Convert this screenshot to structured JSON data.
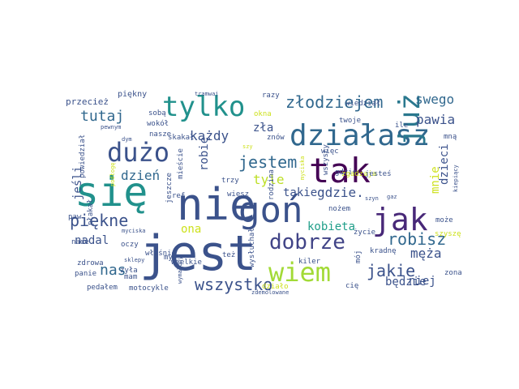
{
  "words": [
    {
      "text": "jest",
      "color": "#3b528b"
    },
    {
      "text": "nie",
      "color": "#3b528b"
    },
    {
      "text": "się",
      "color": "#21918c"
    },
    {
      "text": "goń",
      "color": "#3b528b"
    },
    {
      "text": "tak",
      "color": "#440154"
    },
    {
      "text": "działasz",
      "color": "#31688e"
    },
    {
      "text": "tylko",
      "color": "#21918c"
    },
    {
      "text": "dużo",
      "color": "#3b528b"
    },
    {
      "text": "jak",
      "color": "#482878"
    },
    {
      "text": "już",
      "color": "#2a788e"
    },
    {
      "text": "wiem",
      "color": "#a2da37"
    },
    {
      "text": "dobrze",
      "color": "#414487"
    },
    {
      "text": "złodziejem",
      "color": "#31688e"
    },
    {
      "text": "jestem",
      "color": "#31688e"
    },
    {
      "text": "piękne",
      "color": "#3b528b"
    },
    {
      "text": "robisz",
      "color": "#31688e"
    },
    {
      "text": "wszystko",
      "color": "#3b528b"
    },
    {
      "text": "tutaj",
      "color": "#31688e"
    },
    {
      "text": "jakie",
      "color": "#3b528b"
    },
    {
      "text": "nas",
      "color": "#31688e"
    },
    {
      "text": "każdy",
      "color": "#3b528b"
    },
    {
      "text": "dzień",
      "color": "#31688e"
    },
    {
      "text": "tyle",
      "color": "#bddf26"
    },
    {
      "text": "gdzie.",
      "color": "#3b528b"
    },
    {
      "text": "swego",
      "color": "#31688e"
    },
    {
      "text": "pawia",
      "color": "#3b528b"
    },
    {
      "text": "kobieta",
      "color": "#1f9e89"
    },
    {
      "text": "męża",
      "color": "#3b528b"
    },
    {
      "text": "niej",
      "color": "#3b528b"
    },
    {
      "text": "dzieci",
      "color": "#3b528b"
    },
    {
      "text": "mnie",
      "color": "#cde11d"
    },
    {
      "text": "jeśli",
      "color": "#3b528b"
    },
    {
      "text": "zła",
      "color": "#3b528b"
    },
    {
      "text": "nadal",
      "color": "#3b528b"
    },
    {
      "text": "ona",
      "color": "#cde11d"
    },
    {
      "text": "takie",
      "color": "#3b528b"
    },
    {
      "text": "robię",
      "color": "#3b528b"
    },
    {
      "text": "będzie",
      "color": "#3b528b"
    },
    {
      "text": "przecież",
      "color": "#3b528b"
    },
    {
      "text": "piękny",
      "color": "#3b528b"
    },
    {
      "text": "razy",
      "color": "#3b528b"
    },
    {
      "text": "okna",
      "color": "#cde11d"
    },
    {
      "text": "wiedział",
      "color": "#3b528b"
    },
    {
      "text": "twoje",
      "color": "#3b528b"
    },
    {
      "text": "ile",
      "color": "#3b528b"
    },
    {
      "text": "tramwaj",
      "color": "#3b528b"
    },
    {
      "text": "sobą",
      "color": "#3b528b"
    },
    {
      "text": "wokół",
      "color": "#3b528b"
    },
    {
      "text": "nasze",
      "color": "#3b528b"
    },
    {
      "text": "skakał",
      "color": "#3b528b"
    },
    {
      "text": "znów",
      "color": "#3b528b"
    },
    {
      "text": "mną",
      "color": "#3b528b"
    },
    {
      "text": "więc",
      "color": "#3b528b"
    },
    {
      "text": "pewnym",
      "color": "#3b528b"
    },
    {
      "text": "dym",
      "color": "#3b528b"
    },
    {
      "text": "szy",
      "color": "#cde11d"
    },
    {
      "text": "powiedział",
      "color": "#3b528b"
    },
    {
      "text": "podłogę",
      "color": "#cde11d"
    },
    {
      "text": "mieście",
      "color": "#3b528b"
    },
    {
      "text": "trzy",
      "color": "#3b528b"
    },
    {
      "text": "ref",
      "color": "#3b528b"
    },
    {
      "text": "wiesz",
      "color": "#3b528b"
    },
    {
      "text": "rodzina",
      "color": "#3b528b"
    },
    {
      "text": "myciska",
      "color": "#cde11d"
    },
    {
      "text": "wszyscy",
      "color": "#3b528b"
    },
    {
      "text": "gdzie",
      "color": "#3b528b"
    },
    {
      "text": "zgadzaja",
      "color": "#cde11d"
    },
    {
      "text": "jesteś",
      "color": "#3b528b"
    },
    {
      "text": "nożem",
      "color": "#3b528b"
    },
    {
      "text": "życie",
      "color": "#3b528b"
    },
    {
      "text": "szyn",
      "color": "#3b528b"
    },
    {
      "text": "gaz",
      "color": "#3b528b"
    },
    {
      "text": "może",
      "color": "#3b528b"
    },
    {
      "text": "kradnę",
      "color": "#3b528b"
    },
    {
      "text": "szyszę",
      "color": "#cde11d"
    },
    {
      "text": "kiepiący",
      "color": "#3b528b"
    },
    {
      "text": "jeszcze",
      "color": "#3b528b"
    },
    {
      "text": "paw",
      "color": "#3b528b"
    },
    {
      "text": "płakał",
      "color": "#3b528b"
    },
    {
      "text": "myciska",
      "color": "#3b528b"
    },
    {
      "text": "oczy",
      "color": "#3b528b"
    },
    {
      "text": "nade",
      "color": "#3b528b"
    },
    {
      "text": "właśnie",
      "color": "#3b528b"
    },
    {
      "text": "sklepy",
      "color": "#3b528b"
    },
    {
      "text": "mył",
      "color": "#3b528b"
    },
    {
      "text": "wielkie",
      "color": "#3b528b"
    },
    {
      "text": "wysłuchał",
      "color": "#3b528b"
    },
    {
      "text": "też",
      "color": "#3b528b"
    },
    {
      "text": "mam",
      "color": "#3b528b"
    },
    {
      "text": "zdrowa",
      "color": "#3b528b"
    },
    {
      "text": "panie",
      "color": "#3b528b"
    },
    {
      "text": "żyła",
      "color": "#3b528b"
    },
    {
      "text": "wymalony",
      "color": "#3b528b"
    },
    {
      "text": "pedałem",
      "color": "#3b528b"
    },
    {
      "text": "motocykle",
      "color": "#3b528b"
    },
    {
      "text": "działo",
      "color": "#cde11d"
    },
    {
      "text": "kiler",
      "color": "#3b528b"
    },
    {
      "text": "mój",
      "color": "#3b528b"
    },
    {
      "text": "cię",
      "color": "#3b528b"
    },
    {
      "text": "zona",
      "color": "#3b528b"
    },
    {
      "text": "zdemolowane",
      "color": "#3b528b"
    }
  ]
}
